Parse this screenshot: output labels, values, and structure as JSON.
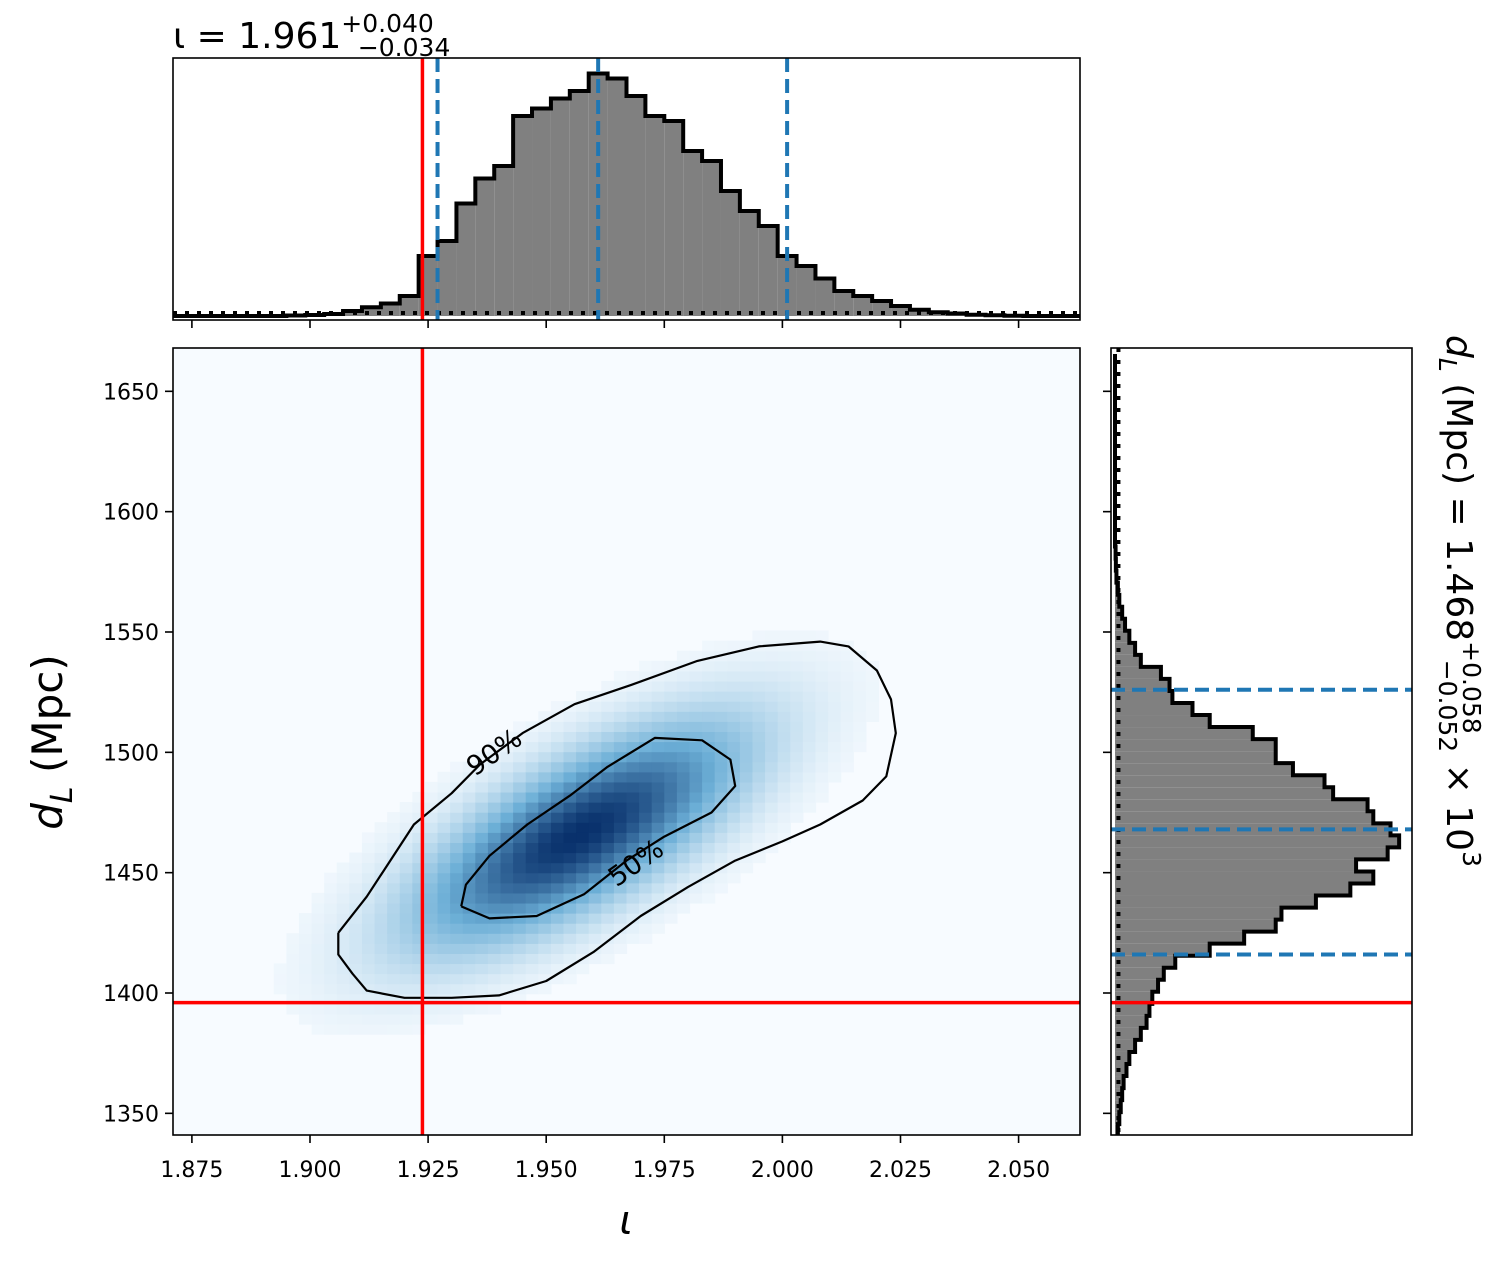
{
  "chart_data": [
    {
      "type": "step-histogram",
      "panel": "top-marginal",
      "title": {
        "base": "ι = 1.961",
        "sup": "+0.040",
        "sub": "−0.034"
      },
      "x": [
        1.869,
        1.873,
        1.877,
        1.881,
        1.885,
        1.889,
        1.893,
        1.897,
        1.901,
        1.905,
        1.909,
        1.913,
        1.917,
        1.921,
        1.925,
        1.929,
        1.933,
        1.937,
        1.941,
        1.945,
        1.949,
        1.953,
        1.957,
        1.961,
        1.965,
        1.969,
        1.973,
        1.977,
        1.981,
        1.985,
        1.989,
        1.993,
        1.997,
        2.001,
        2.005,
        2.009,
        2.013,
        2.017,
        2.021,
        2.025,
        2.029,
        2.033,
        2.037,
        2.041,
        2.045,
        2.049,
        2.053,
        2.057,
        2.061
      ],
      "counts": [
        0,
        0,
        0,
        0,
        0,
        0,
        0,
        0.002,
        0.004,
        0.008,
        0.02,
        0.035,
        0.05,
        0.08,
        0.24,
        0.3,
        0.45,
        0.55,
        0.6,
        0.8,
        0.83,
        0.87,
        0.9,
        0.97,
        0.95,
        0.88,
        0.8,
        0.78,
        0.66,
        0.62,
        0.5,
        0.42,
        0.36,
        0.24,
        0.2,
        0.15,
        0.1,
        0.08,
        0.06,
        0.04,
        0.025,
        0.015,
        0.01,
        0.005,
        0.003,
        0.001,
        0,
        0,
        0
      ],
      "xlim": [
        1.871,
        2.063
      ],
      "vlines": {
        "truth": 1.9238,
        "quantiles": [
          1.927,
          1.961,
          2.001
        ]
      },
      "prior_level": 0.012,
      "colors": {
        "fill": "#808080",
        "edge": "#000000",
        "truth": "#ff0000",
        "quantile": "#1f77b4"
      }
    },
    {
      "type": "heatmap",
      "panel": "joint-density",
      "xlabel": "ι",
      "ylabel": "d_L (Mpc)",
      "xlim": [
        1.871,
        2.063
      ],
      "ylim": [
        1341,
        1668
      ],
      "xticks": [
        "1.875",
        "1.900",
        "1.925",
        "1.950",
        "1.975",
        "2.000",
        "2.025",
        "2.050"
      ],
      "xtick_values": [
        1.875,
        1.9,
        1.925,
        1.95,
        1.975,
        2.0,
        2.025,
        2.05
      ],
      "yticks": [
        "1350",
        "1400",
        "1450",
        "1500",
        "1550",
        "1600",
        "1650"
      ],
      "ytick_values": [
        1350,
        1400,
        1450,
        1500,
        1550,
        1600,
        1650
      ],
      "density": {
        "center_x": 1.957,
        "center_y": 1466,
        "sigma_x": 0.022,
        "sigma_y": 29,
        "correlation": 0.72
      },
      "contours": [
        {
          "label": "90%",
          "points": [
            [
              1.906,
              1425
            ],
            [
              1.912,
              1440
            ],
            [
              1.917,
              1455
            ],
            [
              1.922,
              1470
            ],
            [
              1.93,
              1483
            ],
            [
              1.936,
              1495
            ],
            [
              1.945,
              1508
            ],
            [
              1.956,
              1520
            ],
            [
              1.968,
              1528
            ],
            [
              1.982,
              1538
            ],
            [
              1.995,
              1544
            ],
            [
              2.008,
              1546
            ],
            [
              2.014,
              1544
            ],
            [
              2.02,
              1534
            ],
            [
              2.023,
              1522
            ],
            [
              2.024,
              1508
            ],
            [
              2.022,
              1490
            ],
            [
              2.017,
              1480
            ],
            [
              2.008,
              1470
            ],
            [
              2.0,
              1463
            ],
            [
              1.99,
              1455
            ],
            [
              1.98,
              1444
            ],
            [
              1.97,
              1432
            ],
            [
              1.96,
              1417
            ],
            [
              1.95,
              1405
            ],
            [
              1.94,
              1399
            ],
            [
              1.93,
              1398
            ],
            [
              1.92,
              1398
            ],
            [
              1.912,
              1401
            ],
            [
              1.909,
              1408
            ],
            [
              1.906,
              1416
            ],
            [
              1.906,
              1425
            ]
          ]
        },
        {
          "label": "50%",
          "points": [
            [
              1.932,
              1436
            ],
            [
              1.933,
              1445
            ],
            [
              1.938,
              1457
            ],
            [
              1.946,
              1470
            ],
            [
              1.955,
              1482
            ],
            [
              1.963,
              1494
            ],
            [
              1.973,
              1506
            ],
            [
              1.983,
              1505
            ],
            [
              1.989,
              1497
            ],
            [
              1.99,
              1486
            ],
            [
              1.985,
              1475
            ],
            [
              1.975,
              1465
            ],
            [
              1.967,
              1455
            ],
            [
              1.958,
              1441
            ],
            [
              1.948,
              1432
            ],
            [
              1.938,
              1431
            ],
            [
              1.932,
              1436
            ]
          ]
        }
      ],
      "contour_labels": [
        {
          "text": "90%",
          "x": 1.939,
          "y": 1500,
          "angle": -35
        },
        {
          "text": "50%",
          "x": 1.969,
          "y": 1454,
          "angle": -35
        }
      ],
      "truth": {
        "x": 1.9238,
        "y": 1396
      },
      "colormap": "Blues",
      "colors": {
        "contour": "#000000",
        "truth": "#ff0000",
        "low": "#f7fbff",
        "high": "#08306b"
      }
    },
    {
      "type": "step-histogram",
      "panel": "right-marginal",
      "orientation": "horizontal",
      "title": {
        "base": "d",
        "base_sub": "L",
        "rest": " (Mpc) = 1.468",
        "sup": "+0.058",
        "sub": "−0.052",
        "factor": " × 10",
        "factor_sup": "3"
      },
      "y": [
        1343,
        1348,
        1353,
        1358,
        1363,
        1368,
        1373,
        1378,
        1383,
        1388,
        1393,
        1398,
        1403,
        1408,
        1413,
        1418,
        1423,
        1428,
        1433,
        1438,
        1443,
        1448,
        1453,
        1458,
        1463,
        1468,
        1473,
        1478,
        1483,
        1488,
        1493,
        1498,
        1503,
        1508,
        1513,
        1518,
        1523,
        1528,
        1533,
        1538,
        1543,
        1548,
        1553,
        1558,
        1563,
        1568,
        1573,
        1578,
        1583,
        1588,
        1593,
        1598,
        1603,
        1608,
        1613,
        1618,
        1623,
        1628,
        1633,
        1638,
        1643,
        1648,
        1653,
        1658,
        1663
      ],
      "counts": [
        0.01,
        0.015,
        0.02,
        0.025,
        0.03,
        0.04,
        0.05,
        0.07,
        0.09,
        0.11,
        0.12,
        0.13,
        0.15,
        0.17,
        0.21,
        0.33,
        0.45,
        0.56,
        0.58,
        0.7,
        0.82,
        0.9,
        0.84,
        0.95,
        0.99,
        0.96,
        0.9,
        0.88,
        0.76,
        0.73,
        0.62,
        0.56,
        0.56,
        0.48,
        0.33,
        0.27,
        0.2,
        0.19,
        0.16,
        0.09,
        0.07,
        0.05,
        0.035,
        0.025,
        0.015,
        0.01,
        0.005,
        0.003,
        0.002,
        0,
        0,
        0,
        0,
        0,
        0,
        0,
        0,
        0,
        0,
        0,
        0,
        0,
        0,
        0,
        0
      ],
      "ylim": [
        1341,
        1668
      ],
      "hlines": {
        "truth": 1396,
        "quantiles": [
          1416,
          1468,
          1526
        ]
      },
      "prior_level": 0.012,
      "colors": {
        "fill": "#808080",
        "edge": "#000000",
        "truth": "#ff0000",
        "quantile": "#1f77b4"
      }
    }
  ]
}
